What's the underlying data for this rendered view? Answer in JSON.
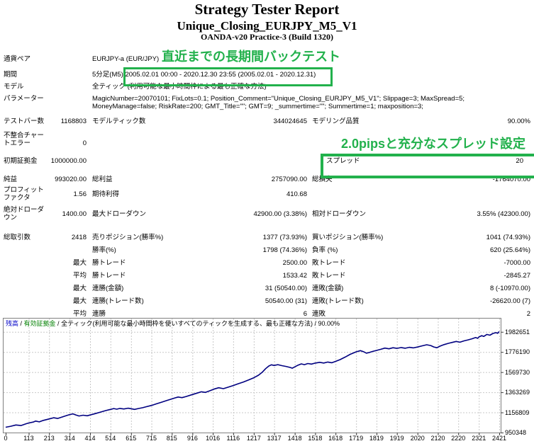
{
  "title": {
    "main": "Strategy Tester Report",
    "ea": "Unique_Closing_EURJPY_M5_V1",
    "server": "OANDA-v20 Practice-3 (Build 1320)"
  },
  "annotations": {
    "backtest": "直近までの長期間バックテスト",
    "spread": "2.0pipsと充分なスプレッド設定",
    "highlight_color": "#22B14C"
  },
  "report": {
    "rows": [
      {
        "label": "通貨ペア",
        "value": "EURJPY-a (EUR/JPY)"
      },
      {
        "label": "期間",
        "value": "5分足(M5) 2005.02.01 00:00 - 2020.12.30 23:55 (2005.02.01 - 2020.12.31)"
      },
      {
        "label": "モデル",
        "value": "全ティック (利用可能な最小時間枠による最も正確な方法)"
      },
      {
        "label": "パラメーター",
        "lines": [
          "MagicNumber=20070101; FixLots=0.1; Position_Comment=\"Unique_Closing_EURJPY_M5_V1\"; Slippage=3; MaxSpread=5;",
          "MoneyManage=false; RiskRate=200; GMT_Title=\"\"; GMT=9; _summertime=\"\"; Summertime=1; maxposition=3;"
        ]
      },
      {
        "cells": [
          "テストバー数",
          "1168803",
          "モデルティック数",
          "344024645",
          "モデリング品質",
          "90.00%"
        ]
      },
      {
        "cells": [
          "不整合チャートエラー",
          "0",
          "",
          "",
          "",
          ""
        ]
      },
      {
        "cells": [
          "初期証拠金",
          "1000000.00",
          "",
          "",
          "スプレッド",
          "20"
        ]
      },
      {
        "cells": [
          "純益",
          "993020.00",
          "総利益",
          "2757090.00",
          "総損失",
          "-1764070.00"
        ]
      },
      {
        "cells": [
          "プロフィットファクタ",
          "1.56",
          "期待利得",
          "410.68",
          "",
          ""
        ]
      },
      {
        "cells": [
          "絶対ドローダウン",
          "1400.00",
          "最大ドローダウン",
          "42900.00 (3.38%)",
          "相対ドローダウン",
          "3.55% (42300.00)"
        ]
      },
      {
        "cells": [
          "総取引数",
          "2418",
          "売りポジション(勝率%)",
          "1377 (73.93%)",
          "買いポジション(勝率%)",
          "1041 (74.93%)"
        ]
      },
      {
        "cells": [
          "",
          "",
          "勝率(%)",
          "1798 (74.36%)",
          "負率 (%)",
          "620 (25.64%)"
        ]
      },
      {
        "cells": [
          "",
          "最大",
          "勝トレード",
          "2500.00",
          "敗トレード",
          "-7000.00"
        ]
      },
      {
        "cells": [
          "",
          "平均",
          "勝トレード",
          "1533.42",
          "敗トレード",
          "-2845.27"
        ]
      },
      {
        "cells": [
          "",
          "最大",
          "連勝(金額)",
          "31 (50540.00)",
          "連敗(金額)",
          "8 (-10970.00)"
        ]
      },
      {
        "cells": [
          "",
          "最大",
          "連勝(トレード数)",
          "50540.00 (31)",
          "連敗(トレード数)",
          "-26620.00 (7)"
        ]
      },
      {
        "cells": [
          "",
          "平均",
          "連勝",
          "6",
          "連敗",
          "2"
        ]
      }
    ]
  },
  "chart_data": {
    "type": "line",
    "legend": {
      "balance": "残高",
      "equity": "有効証拠金",
      "model": "全ティック(利用可能な最小時間枠を使いすべてのティックを生成する、最も正確な方法)",
      "quality": "90.00%",
      "sep": " / ",
      "balance_color": "#0000C8",
      "equity_color": "#008000"
    },
    "x_ticks": [
      0,
      113,
      213,
      314,
      414,
      514,
      615,
      715,
      815,
      916,
      1016,
      1116,
      1217,
      1317,
      1418,
      1518,
      1618,
      1719,
      1819,
      1919,
      2020,
      2120,
      2220,
      2321,
      2421
    ],
    "y_ticks": [
      1982651,
      1776190,
      1569730,
      1363269,
      1156809,
      950348
    ],
    "xlim": [
      0,
      2421
    ],
    "ylim": [
      950348,
      2124000
    ],
    "grid": true,
    "legend_position": "top-left",
    "series": [
      {
        "name": "残高",
        "color": "#000080",
        "points": [
          [
            0,
            1005000
          ],
          [
            25,
            1015000
          ],
          [
            50,
            1028000
          ],
          [
            75,
            1022000
          ],
          [
            100,
            1040000
          ],
          [
            113,
            1048000
          ],
          [
            135,
            1058000
          ],
          [
            147,
            1068000
          ],
          [
            165,
            1060000
          ],
          [
            185,
            1075000
          ],
          [
            213,
            1090000
          ],
          [
            235,
            1102000
          ],
          [
            255,
            1095000
          ],
          [
            280,
            1112000
          ],
          [
            300,
            1125000
          ],
          [
            314,
            1135000
          ],
          [
            330,
            1142000
          ],
          [
            345,
            1130000
          ],
          [
            360,
            1120000
          ],
          [
            380,
            1128000
          ],
          [
            400,
            1122000
          ],
          [
            414,
            1130000
          ],
          [
            440,
            1145000
          ],
          [
            465,
            1160000
          ],
          [
            490,
            1175000
          ],
          [
            514,
            1188000
          ],
          [
            530,
            1196000
          ],
          [
            545,
            1190000
          ],
          [
            560,
            1198000
          ],
          [
            580,
            1192000
          ],
          [
            600,
            1200000
          ],
          [
            615,
            1195000
          ],
          [
            632,
            1188000
          ],
          [
            650,
            1196000
          ],
          [
            672,
            1205000
          ],
          [
            690,
            1215000
          ],
          [
            715,
            1228000
          ],
          [
            740,
            1245000
          ],
          [
            765,
            1262000
          ],
          [
            790,
            1278000
          ],
          [
            815,
            1295000
          ],
          [
            830,
            1305000
          ],
          [
            846,
            1315000
          ],
          [
            865,
            1308000
          ],
          [
            885,
            1320000
          ],
          [
            916,
            1340000
          ],
          [
            940,
            1355000
          ],
          [
            960,
            1368000
          ],
          [
            980,
            1362000
          ],
          [
            1000,
            1378000
          ],
          [
            1021,
            1395000
          ],
          [
            1045,
            1410000
          ],
          [
            1068,
            1400000
          ],
          [
            1090,
            1415000
          ],
          [
            1116,
            1432000
          ],
          [
            1140,
            1450000
          ],
          [
            1165,
            1468000
          ],
          [
            1190,
            1488000
          ],
          [
            1217,
            1512000
          ],
          [
            1240,
            1538000
          ],
          [
            1258,
            1568000
          ],
          [
            1275,
            1605000
          ],
          [
            1290,
            1632000
          ],
          [
            1303,
            1645000
          ],
          [
            1317,
            1638000
          ],
          [
            1335,
            1646000
          ],
          [
            1355,
            1636000
          ],
          [
            1375,
            1628000
          ],
          [
            1395,
            1618000
          ],
          [
            1406,
            1610000
          ],
          [
            1418,
            1624000
          ],
          [
            1435,
            1642000
          ],
          [
            1450,
            1654000
          ],
          [
            1465,
            1646000
          ],
          [
            1482,
            1658000
          ],
          [
            1500,
            1652000
          ],
          [
            1518,
            1662000
          ],
          [
            1540,
            1670000
          ],
          [
            1560,
            1663000
          ],
          [
            1580,
            1673000
          ],
          [
            1600,
            1666000
          ],
          [
            1618,
            1680000
          ],
          [
            1640,
            1698000
          ],
          [
            1665,
            1724000
          ],
          [
            1690,
            1752000
          ],
          [
            1719,
            1778000
          ],
          [
            1740,
            1790000
          ],
          [
            1755,
            1780000
          ],
          [
            1770,
            1764000
          ],
          [
            1785,
            1772000
          ],
          [
            1800,
            1782000
          ],
          [
            1819,
            1792000
          ],
          [
            1840,
            1804000
          ],
          [
            1860,
            1816000
          ],
          [
            1880,
            1809000
          ],
          [
            1900,
            1820000
          ],
          [
            1919,
            1813000
          ],
          [
            1940,
            1822000
          ],
          [
            1960,
            1815000
          ],
          [
            1980,
            1824000
          ],
          [
            2000,
            1818000
          ],
          [
            2020,
            1827000
          ],
          [
            2045,
            1840000
          ],
          [
            2065,
            1850000
          ],
          [
            2085,
            1842000
          ],
          [
            2100,
            1828000
          ],
          [
            2115,
            1820000
          ],
          [
            2130,
            1836000
          ],
          [
            2150,
            1852000
          ],
          [
            2170,
            1864000
          ],
          [
            2190,
            1874000
          ],
          [
            2210,
            1884000
          ],
          [
            2228,
            1876000
          ],
          [
            2248,
            1890000
          ],
          [
            2268,
            1900000
          ],
          [
            2288,
            1912000
          ],
          [
            2305,
            1924000
          ],
          [
            2315,
            1916000
          ],
          [
            2321,
            1930000
          ],
          [
            2335,
            1944000
          ],
          [
            2345,
            1936000
          ],
          [
            2360,
            1956000
          ],
          [
            2375,
            1948000
          ],
          [
            2390,
            1966000
          ],
          [
            2405,
            1974000
          ],
          [
            2413,
            1968000
          ],
          [
            2421,
            1986000
          ]
        ]
      }
    ]
  }
}
